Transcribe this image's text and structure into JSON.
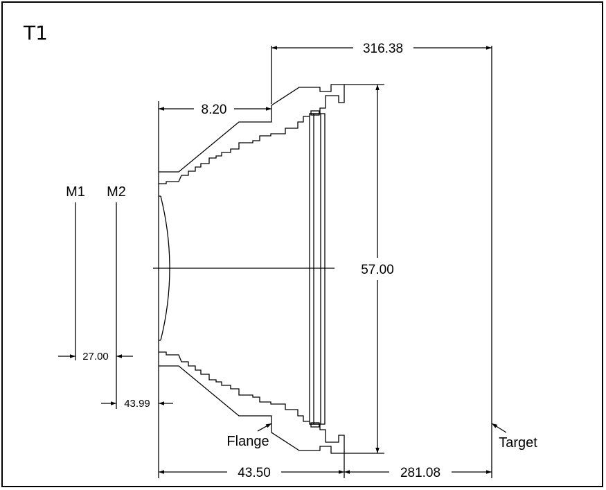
{
  "title": "T1",
  "labels": {
    "m1": "M1",
    "m2": "M2",
    "flange": "Flange",
    "target": "Target"
  },
  "dimensions": {
    "top_total": "316.38",
    "top_left": "8.20",
    "height": "57.00",
    "m1_m2": "27.00",
    "m2_lens": "43.99",
    "bottom_left": "43.50",
    "bottom_right": "281.08"
  },
  "colors": {
    "line": "#000000",
    "background": "#ffffff"
  }
}
